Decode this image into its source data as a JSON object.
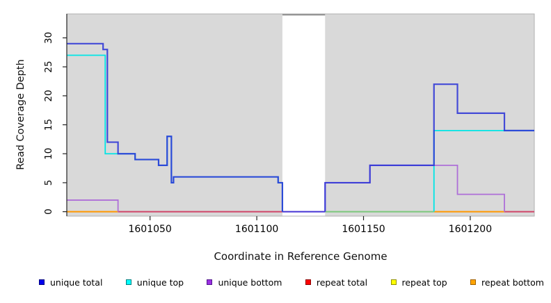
{
  "figure": {
    "xlabel": "Coordinate in Reference Genome",
    "ylabel": "Read Coverage Depth"
  },
  "chart_data": {
    "type": "line",
    "subtype": "step",
    "title": "",
    "xlabel": "Coordinate in Reference Genome",
    "ylabel": "Read Coverage Depth",
    "xlim": [
      1601011,
      1601230
    ],
    "ylim": [
      0,
      34.2
    ],
    "xticks": [
      1601050,
      1601100,
      1601150,
      1601200
    ],
    "yticks": [
      0,
      5,
      10,
      15,
      20,
      25,
      30
    ],
    "grid": false,
    "legend_position": "bottom",
    "plot_background": "#D9D9D9",
    "plot_border_color": "#B0B0B0",
    "axis_color": "#222222",
    "masked_gap": {
      "x_start": 1601112,
      "x_end": 1601132,
      "fill": "#FFFFFF",
      "top_line_color": "#8A8A8A"
    },
    "series": [
      {
        "name": "unique total",
        "color": "#2E35D6",
        "legend_fill": "#0000EE",
        "legend_border": "#000080",
        "steps": [
          [
            1601011,
            29
          ],
          [
            1601028,
            28
          ],
          [
            1601030,
            12
          ],
          [
            1601035,
            10
          ],
          [
            1601043,
            9
          ],
          [
            1601054,
            8
          ],
          [
            1601058,
            13
          ],
          [
            1601060,
            5
          ],
          [
            1601061,
            6
          ],
          [
            1601110,
            5
          ],
          [
            1601112,
            0
          ],
          [
            1601132,
            5
          ],
          [
            1601153,
            8
          ],
          [
            1601183,
            22
          ],
          [
            1601194,
            17
          ],
          [
            1601216,
            14
          ],
          [
            1601230,
            14
          ]
        ]
      },
      {
        "name": "unique top",
        "color": "#00E5E5",
        "legend_fill": "#00FFFF",
        "legend_border": "#007E7E",
        "steps": [
          [
            1601011,
            27
          ],
          [
            1601029,
            10
          ],
          [
            1601043,
            9
          ],
          [
            1601054,
            8
          ],
          [
            1601058,
            13
          ],
          [
            1601060,
            5
          ],
          [
            1601061,
            6
          ],
          [
            1601110,
            5
          ],
          [
            1601112,
            0
          ],
          [
            1601183,
            14
          ],
          [
            1601230,
            14
          ]
        ]
      },
      {
        "name": "unique bottom",
        "color": "#AE6FD8",
        "legend_fill": "#9B30E2",
        "legend_border": "#50168C",
        "steps": [
          [
            1601011,
            2
          ],
          [
            1601035,
            0
          ],
          [
            1601132,
            5
          ],
          [
            1601153,
            8
          ],
          [
            1601194,
            3
          ],
          [
            1601216,
            0
          ],
          [
            1601230,
            0
          ]
        ]
      },
      {
        "name": "repeat total",
        "color": "#D04468",
        "legend_fill": "#FF0000",
        "legend_border": "#8B0000",
        "steps": [
          [
            1601011,
            0
          ],
          [
            1601230,
            0
          ]
        ]
      },
      {
        "name": "repeat top",
        "color": "#FFFF00",
        "legend_fill": "#FFFF00",
        "legend_border": "#909000",
        "steps": [
          [
            1601011,
            0
          ],
          [
            1601230,
            0
          ]
        ]
      },
      {
        "name": "repeat bottom",
        "color": "#FF9800",
        "legend_fill": "#FFA500",
        "legend_border": "#A06000",
        "steps": [
          [
            1601011,
            0
          ],
          [
            1601230,
            0
          ]
        ]
      }
    ],
    "baseline_segments": [
      {
        "from": 1601011,
        "to": 1601035,
        "color": "#FF9800"
      },
      {
        "from": 1601035,
        "to": 1601112,
        "color": "#D04468"
      },
      {
        "from": 1601112,
        "to": 1601132,
        "color": "#4433D4"
      },
      {
        "from": 1601132,
        "to": 1601183,
        "color": "#7CC87C"
      },
      {
        "from": 1601183,
        "to": 1601216,
        "color": "#FF9800"
      },
      {
        "from": 1601216,
        "to": 1601230,
        "color": "#D04468"
      }
    ]
  }
}
